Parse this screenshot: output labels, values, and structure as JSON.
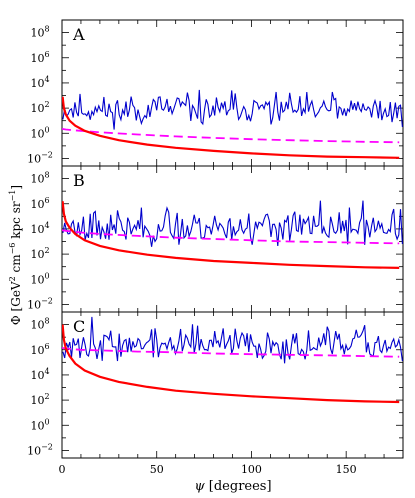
{
  "chart_data": [
    {
      "type": "line",
      "panel_label": "A",
      "xlim": [
        0,
        180
      ],
      "ylim_log10": [
        -2.6,
        9.0
      ],
      "y_scale": "log",
      "series": [
        {
          "role": "noisy-blue",
          "color": "#0000cc",
          "style": "solid",
          "baseline_log10": 1.8,
          "amplitude": 0.55,
          "seed": 11
        },
        {
          "role": "magenta-dashed",
          "color": "#ff00ff",
          "style": "dashed",
          "x": [
            0,
            2,
            5,
            10,
            20,
            40,
            60,
            80,
            100,
            120,
            140,
            160,
            178
          ],
          "log10_y": [
            0.35,
            0.3,
            0.25,
            0.2,
            0.08,
            -0.1,
            -0.25,
            -0.37,
            -0.47,
            -0.55,
            -0.62,
            -0.68,
            -0.72
          ]
        },
        {
          "role": "red-solid",
          "color": "#ff0000",
          "style": "solid",
          "x": [
            0.3,
            1,
            2,
            4,
            7,
            12,
            20,
            30,
            45,
            60,
            80,
            100,
            120,
            140,
            160,
            178
          ],
          "log10_y": [
            2.9,
            2.0,
            1.5,
            1.0,
            0.6,
            0.2,
            -0.2,
            -0.55,
            -0.9,
            -1.15,
            -1.4,
            -1.6,
            -1.75,
            -1.85,
            -1.9,
            -1.95
          ]
        }
      ]
    },
    {
      "type": "line",
      "panel_label": "B",
      "xlim": [
        0,
        180
      ],
      "ylim_log10": [
        -2.6,
        9.0
      ],
      "y_scale": "log",
      "series": [
        {
          "role": "noisy-blue",
          "color": "#0000cc",
          "style": "solid",
          "baseline_log10": 4.1,
          "amplitude": 0.65,
          "seed": 23
        },
        {
          "role": "magenta-dashed",
          "color": "#ff00ff",
          "style": "dashed",
          "x": [
            0,
            2,
            5,
            10,
            20,
            40,
            60,
            80,
            100,
            120,
            140,
            160,
            178
          ],
          "log10_y": [
            3.9,
            3.85,
            3.8,
            3.72,
            3.6,
            3.45,
            3.3,
            3.2,
            3.1,
            3.0,
            2.95,
            2.9,
            2.85
          ]
        },
        {
          "role": "red-solid",
          "color": "#ff0000",
          "style": "solid",
          "x": [
            0.3,
            1,
            2,
            4,
            7,
            12,
            20,
            30,
            45,
            60,
            80,
            100,
            120,
            140,
            160,
            178
          ],
          "log10_y": [
            6.2,
            5.2,
            4.6,
            4.1,
            3.6,
            3.1,
            2.65,
            2.3,
            1.95,
            1.7,
            1.45,
            1.3,
            1.15,
            1.05,
            0.95,
            0.9
          ]
        }
      ]
    },
    {
      "type": "line",
      "panel_label": "C",
      "xlim": [
        0,
        180
      ],
      "ylim_log10": [
        -2.6,
        9.0
      ],
      "y_scale": "log",
      "series": [
        {
          "role": "noisy-blue",
          "color": "#0000cc",
          "style": "solid",
          "baseline_log10": 6.4,
          "amplitude": 0.6,
          "seed": 37
        },
        {
          "role": "magenta-dashed",
          "color": "#ff00ff",
          "style": "dashed",
          "x": [
            0,
            2,
            5,
            10,
            20,
            40,
            60,
            80,
            100,
            120,
            140,
            160,
            178
          ],
          "log10_y": [
            6.15,
            6.1,
            6.05,
            6.0,
            5.95,
            5.85,
            5.8,
            5.7,
            5.65,
            5.6,
            5.55,
            5.5,
            5.45
          ]
        },
        {
          "role": "red-solid",
          "color": "#ff0000",
          "style": "solid",
          "x": [
            0.3,
            1,
            2,
            4,
            7,
            12,
            20,
            30,
            45,
            60,
            80,
            100,
            120,
            140,
            160,
            178
          ],
          "log10_y": [
            8.0,
            6.8,
            6.1,
            5.5,
            4.9,
            4.35,
            3.85,
            3.45,
            3.05,
            2.75,
            2.5,
            2.3,
            2.15,
            2.0,
            1.9,
            1.85
          ]
        }
      ]
    }
  ],
  "y_ticks": [
    {
      "exp": -2,
      "label": "10",
      "sup": "−2"
    },
    {
      "exp": 0,
      "label": "10",
      "sup": "0"
    },
    {
      "exp": 2,
      "label": "10",
      "sup": "2"
    },
    {
      "exp": 4,
      "label": "10",
      "sup": "4"
    },
    {
      "exp": 6,
      "label": "10",
      "sup": "6"
    },
    {
      "exp": 8,
      "label": "10",
      "sup": "8"
    }
  ],
  "x_ticks": [
    {
      "value": 0,
      "label": "0"
    },
    {
      "value": 50,
      "label": "50"
    },
    {
      "value": 100,
      "label": "100"
    },
    {
      "value": 150,
      "label": "150"
    }
  ],
  "xlabel": {
    "symbol": "ψ",
    "text": " [degrees]"
  },
  "ylabel": {
    "a": "Φ  [GeV",
    "a_sup": "2",
    "b": " cm",
    "b_sup": "−6",
    "c": " kpc sr",
    "c_sup": "−1",
    "d": "]"
  }
}
